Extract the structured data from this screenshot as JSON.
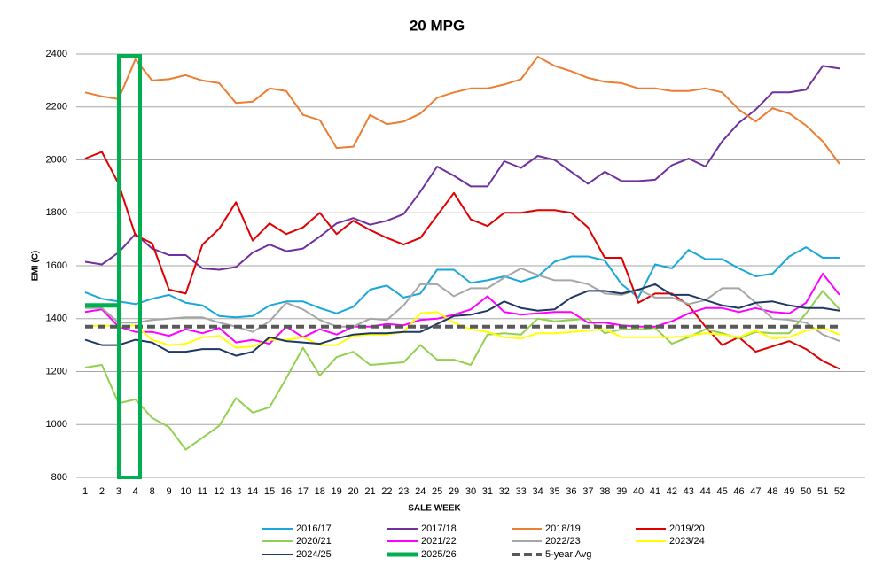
{
  "chart_data": {
    "type": "line",
    "title": "20 MPG",
    "x_label": "SALE WEEK",
    "y_label": "EMI (C)",
    "categories": [
      "1",
      "2",
      "3",
      "4",
      "8",
      "9",
      "10",
      "11",
      "12",
      "13",
      "14",
      "15",
      "16",
      "17",
      "18",
      "19",
      "20",
      "21",
      "22",
      "23",
      "24",
      "25",
      "29",
      "30",
      "31",
      "32",
      "33",
      "34",
      "35",
      "36",
      "37",
      "38",
      "39",
      "40",
      "41",
      "42",
      "43",
      "44",
      "45",
      "46",
      "47",
      "48",
      "49",
      "50",
      "51",
      "52"
    ],
    "ylim": [
      800,
      2400
    ],
    "yticks": [
      800,
      1000,
      1200,
      1400,
      1600,
      1800,
      2000,
      2200,
      2400
    ],
    "grid": true,
    "legend": "bottom",
    "series": [
      {
        "name": "2016/17",
        "color": "#1aa7d9",
        "width": 2,
        "values": [
          1500,
          1475,
          1465,
          1455,
          1475,
          1490,
          1460,
          1450,
          1410,
          1405,
          1410,
          1450,
          1465,
          1465,
          1440,
          1420,
          1445,
          1510,
          1525,
          1480,
          1495,
          1585,
          1585,
          1535,
          1545,
          1560,
          1540,
          1560,
          1615,
          1635,
          1635,
          1620,
          1530,
          1480,
          1605,
          1590,
          1660,
          1625,
          1625,
          1590,
          1560,
          1570,
          1635,
          1670,
          1630,
          1630
        ]
      },
      {
        "name": "2017/18",
        "color": "#7030a0",
        "width": 2,
        "values": [
          1615,
          1605,
          1650,
          1720,
          1665,
          1640,
          1640,
          1590,
          1585,
          1595,
          1650,
          1680,
          1655,
          1665,
          1710,
          1760,
          1780,
          1755,
          1770,
          1795,
          1880,
          1975,
          1940,
          1900,
          1900,
          1995,
          1970,
          2015,
          2000,
          1955,
          1910,
          1955,
          1920,
          1920,
          1925,
          1980,
          2005,
          1975,
          2070,
          2140,
          2190,
          2255,
          2255,
          2265,
          2355,
          2345
        ]
      },
      {
        "name": "2018/19",
        "color": "#ed7d31",
        "width": 2,
        "values": [
          2255,
          2240,
          2230,
          2380,
          2300,
          2305,
          2320,
          2300,
          2290,
          2215,
          2220,
          2270,
          2260,
          2170,
          2150,
          2045,
          2050,
          2170,
          2135,
          2145,
          2175,
          2235,
          2255,
          2270,
          2270,
          2285,
          2305,
          2390,
          2355,
          2335,
          2310,
          2295,
          2290,
          2270,
          2270,
          2260,
          2260,
          2270,
          2255,
          2190,
          2145,
          2195,
          2175,
          2130,
          2070,
          1985
        ]
      },
      {
        "name": "2019/20",
        "color": "#e00000",
        "width": 2,
        "values": [
          2005,
          2030,
          1910,
          1715,
          1685,
          1510,
          1495,
          1680,
          1740,
          1840,
          1695,
          1760,
          1720,
          1745,
          1800,
          1720,
          1770,
          1735,
          1705,
          1680,
          1705,
          1790,
          1875,
          1775,
          1750,
          1800,
          1800,
          1810,
          1810,
          1800,
          1745,
          1630,
          1630,
          1460,
          1495,
          1495,
          1450,
          1370,
          1300,
          1330,
          1275,
          1295,
          1315,
          1285,
          1240,
          1210
        ]
      },
      {
        "name": "2020/21",
        "color": "#92d050",
        "width": 2,
        "values": [
          1215,
          1225,
          1080,
          1095,
          1025,
          990,
          905,
          950,
          995,
          1100,
          1045,
          1065,
          1175,
          1290,
          1185,
          1255,
          1275,
          1225,
          1230,
          1235,
          1300,
          1245,
          1245,
          1225,
          1340,
          1345,
          1340,
          1400,
          1390,
          1395,
          1400,
          1345,
          1360,
          1360,
          1365,
          1305,
          1330,
          1360,
          1345,
          1325,
          1350,
          1345,
          1345,
          1420,
          1505,
          1435
        ]
      },
      {
        "name": "2021/22",
        "color": "#ff00ff",
        "width": 2,
        "values": [
          1425,
          1435,
          1370,
          1350,
          1350,
          1335,
          1360,
          1345,
          1365,
          1310,
          1320,
          1305,
          1370,
          1330,
          1360,
          1340,
          1370,
          1370,
          1380,
          1375,
          1395,
          1400,
          1415,
          1435,
          1485,
          1425,
          1415,
          1420,
          1425,
          1425,
          1385,
          1385,
          1375,
          1370,
          1370,
          1390,
          1420,
          1440,
          1440,
          1425,
          1440,
          1425,
          1420,
          1460,
          1570,
          1490
        ]
      },
      {
        "name": "2022/23",
        "color": "#a6a6a6",
        "width": 2,
        "values": [
          1440,
          1440,
          1385,
          1385,
          1395,
          1400,
          1405,
          1405,
          1385,
          1370,
          1350,
          1390,
          1460,
          1435,
          1395,
          1370,
          1370,
          1400,
          1395,
          1450,
          1530,
          1530,
          1485,
          1515,
          1515,
          1555,
          1590,
          1565,
          1545,
          1545,
          1530,
          1495,
          1490,
          1510,
          1480,
          1480,
          1455,
          1470,
          1515,
          1515,
          1460,
          1400,
          1395,
          1385,
          1340,
          1315
        ]
      },
      {
        "name": "2023/24",
        "color": "#ffff00",
        "width": 2,
        "values": [
          1370,
          1375,
          1370,
          1375,
          1320,
          1300,
          1305,
          1330,
          1335,
          1290,
          1295,
          1320,
          1320,
          1330,
          1300,
          1300,
          1335,
          1340,
          1340,
          1350,
          1420,
          1425,
          1385,
          1360,
          1350,
          1330,
          1325,
          1345,
          1345,
          1350,
          1355,
          1360,
          1330,
          1330,
          1330,
          1330,
          1335,
          1345,
          1340,
          1330,
          1355,
          1325,
          1330,
          1355,
          1365,
          1340
        ]
      },
      {
        "name": "2024/25",
        "color": "#1f3864",
        "width": 2,
        "values": [
          1320,
          1300,
          1300,
          1320,
          1310,
          1275,
          1275,
          1285,
          1285,
          1260,
          1275,
          1330,
          1315,
          1310,
          1305,
          1325,
          1340,
          1345,
          1345,
          1350,
          1350,
          1380,
          1410,
          1415,
          1430,
          1465,
          1440,
          1430,
          1435,
          1480,
          1505,
          1505,
          1495,
          1510,
          1530,
          1490,
          1490,
          1470,
          1450,
          1440,
          1460,
          1465,
          1450,
          1440,
          1440,
          1430
        ]
      },
      {
        "name": "2025/26",
        "color": "#00b050",
        "width": 5,
        "values": [
          1450,
          1450,
          1450,
          null,
          null,
          null,
          null,
          null,
          null,
          null,
          null,
          null,
          null,
          null,
          null,
          null,
          null,
          null,
          null,
          null,
          null,
          null,
          null,
          null,
          null,
          null,
          null,
          null,
          null,
          null,
          null,
          null,
          null,
          null,
          null,
          null,
          null,
          null,
          null,
          null,
          null,
          null,
          null,
          null,
          null,
          null
        ]
      },
      {
        "name": "5-year Avg",
        "color": "#595959",
        "width": 4,
        "dashed": true,
        "values": [
          1370,
          1370,
          1370,
          1370,
          1370,
          1370,
          1370,
          1370,
          1370,
          1370,
          1370,
          1370,
          1370,
          1370,
          1370,
          1370,
          1370,
          1370,
          1370,
          1370,
          1370,
          1370,
          1370,
          1370,
          1370,
          1370,
          1370,
          1370,
          1370,
          1370,
          1370,
          1370,
          1370,
          1370,
          1370,
          1370,
          1370,
          1370,
          1370,
          1370,
          1370,
          1370,
          1370,
          1370,
          1370,
          1370
        ]
      }
    ]
  }
}
